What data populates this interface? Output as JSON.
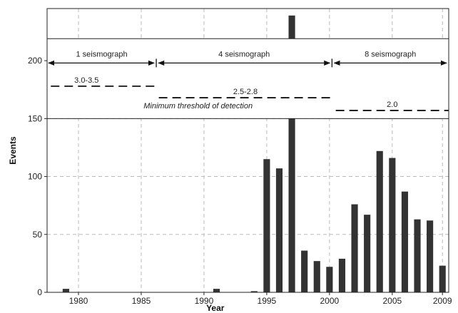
{
  "chart_data": {
    "type": "bar",
    "title": "",
    "xlabel": "Year",
    "ylabel": "Events",
    "xlim": [
      1977.5,
      2009.5
    ],
    "ylim": [
      0,
      245
    ],
    "x_ticks": [
      1980,
      1985,
      1990,
      1995,
      2000,
      2005,
      2009
    ],
    "y_ticks": [
      0,
      50,
      100,
      150,
      200
    ],
    "grid": true,
    "bar_color": "#333333",
    "x": [
      1979,
      1991,
      1994,
      1995,
      1996,
      1997,
      1998,
      1999,
      2000,
      2001,
      2002,
      2003,
      2004,
      2005,
      2006,
      2007,
      2008,
      2009
    ],
    "values": [
      3,
      3,
      1,
      115,
      107,
      239,
      36,
      27,
      22,
      29,
      76,
      67,
      122,
      116,
      87,
      63,
      62,
      23
    ],
    "annotations": {
      "eras": [
        {
          "label": "1 seismograph",
          "from": 1977.5,
          "to": 1986.2
        },
        {
          "label": "4 seismograph",
          "from": 1986.2,
          "to": 2000.2
        },
        {
          "label": "8 seismograph",
          "from": 2000.2,
          "to": 2009.5
        }
      ],
      "thresholds": [
        {
          "label": "3.0-3.5",
          "from": 1977.8,
          "to": 1986.2,
          "y": 178
        },
        {
          "label": "2.5-2.8",
          "from": 1986.4,
          "to": 2000.2,
          "y": 168
        },
        {
          "label": "2.0",
          "from": 2000.5,
          "to": 2009.5,
          "y": 157
        }
      ],
      "note": "Minimum threshold of detection",
      "box_ylim": [
        150,
        219
      ],
      "arrow_y": 198
    }
  }
}
